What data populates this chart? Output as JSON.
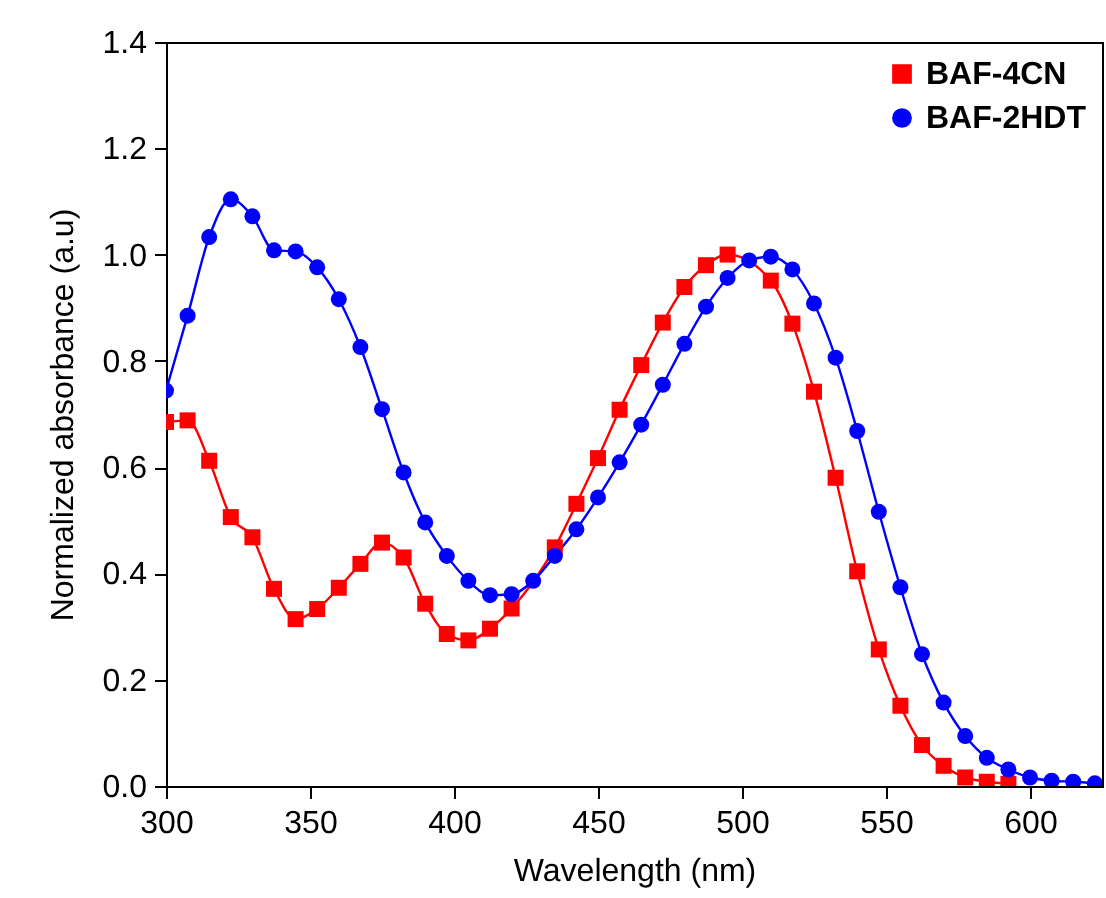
{
  "chart_data": {
    "type": "line",
    "xlabel": "Wavelength (nm)",
    "ylabel": "Normalized absorbance (a.u)",
    "x": [
      300,
      307.5,
      315,
      322.5,
      330,
      337.5,
      345,
      352.5,
      360,
      367.5,
      375,
      382.5,
      390,
      397.5,
      405,
      412.5,
      420,
      427.5,
      435,
      442.5,
      450,
      457.5,
      465,
      472.5,
      480,
      487.5,
      495,
      502.5,
      510,
      517.5,
      525,
      532.5,
      540,
      547.5,
      555,
      562.5,
      570,
      577.5,
      585,
      592.5,
      600,
      607.5,
      615,
      622.5
    ],
    "series": [
      {
        "name": "BAF-4CN",
        "color": "#ff0000",
        "marker": "square",
        "values": [
          0.685,
          0.688,
          0.612,
          0.506,
          0.468,
          0.371,
          0.314,
          0.333,
          0.373,
          0.418,
          0.458,
          0.43,
          0.343,
          0.286,
          0.274,
          0.296,
          0.334,
          null,
          0.449,
          0.531,
          0.617,
          0.708,
          0.792,
          0.872,
          0.939,
          0.98,
          1.0,
          null,
          0.951,
          0.87,
          0.742,
          0.58,
          0.404,
          0.257,
          0.151,
          0.077,
          0.038,
          0.016,
          0.008,
          0.004,
          null,
          null,
          null,
          null
        ]
      },
      {
        "name": "BAF-2HDT",
        "color": "#0000ff",
        "marker": "circle",
        "values": [
          0.744,
          0.885,
          1.033,
          1.104,
          1.072,
          1.008,
          1.006,
          0.976,
          0.916,
          0.826,
          0.709,
          0.59,
          0.496,
          0.433,
          0.386,
          0.359,
          0.361,
          0.386,
          0.433,
          0.483,
          0.543,
          0.609,
          0.68,
          0.755,
          0.832,
          0.902,
          0.956,
          0.989,
          0.996,
          0.972,
          0.908,
          0.806,
          0.668,
          0.516,
          0.374,
          0.248,
          0.157,
          0.094,
          0.053,
          0.031,
          0.016,
          0.01,
          0.008,
          0.005
        ]
      }
    ],
    "xlim": [
      300,
      625
    ],
    "xticks": [
      300,
      350,
      400,
      450,
      500,
      550,
      600
    ],
    "ylim": [
      0,
      1.4
    ],
    "yticks": [
      {
        "value": 0,
        "label": "0.0"
      },
      {
        "value": 0.2,
        "label": "0.2"
      },
      {
        "value": 0.4,
        "label": "0.4"
      },
      {
        "value": 0.6,
        "label": "0.6"
      },
      {
        "value": 0.8,
        "label": "0.8"
      },
      {
        "value": 1,
        "label": "1.0"
      },
      {
        "value": 1.2,
        "label": "1.2"
      },
      {
        "value": 1.4,
        "label": "1.4"
      }
    ],
    "legend": "top right",
    "grid": false,
    "line_style": "solid"
  }
}
